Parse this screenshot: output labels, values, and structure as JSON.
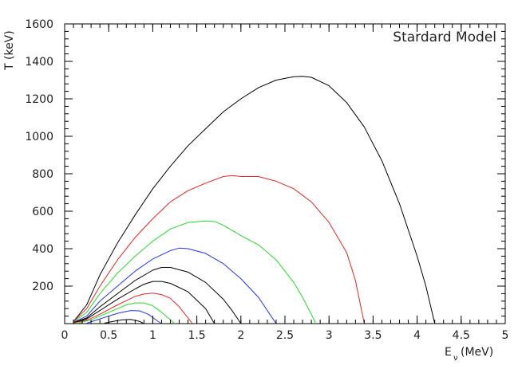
{
  "chart_data": {
    "type": "line",
    "title": "",
    "annotation": "Stardard Model",
    "xlabel": "E_ν (MeV)",
    "xlabel_main": "E",
    "xlabel_sub": "ν",
    "xlabel_unit": "(MeV)",
    "ylabel": "T (keV)",
    "xlim": [
      0,
      5
    ],
    "ylim": [
      0,
      1600
    ],
    "x_ticks": [
      "0",
      "0.5",
      "1",
      "1.5",
      "2",
      "2.5",
      "3",
      "3.5",
      "4",
      "4.5",
      "5"
    ],
    "y_ticks": [
      "200",
      "400",
      "600",
      "800",
      "1000",
      "1200",
      "1400",
      "1600"
    ],
    "grid": false,
    "series": [
      {
        "color": "#000000",
        "x": [
          0.1,
          0.25,
          0.4,
          0.6,
          0.8,
          1.0,
          1.2,
          1.4,
          1.6,
          1.8,
          2.0,
          2.2,
          2.4,
          2.6,
          2.7,
          2.8,
          3.0,
          3.2,
          3.4,
          3.6,
          3.8,
          4.0,
          4.1,
          4.2
        ],
        "y": [
          10,
          100,
          260,
          430,
          580,
          720,
          840,
          950,
          1040,
          1130,
          1200,
          1260,
          1300,
          1318,
          1320,
          1315,
          1270,
          1180,
          1050,
          870,
          640,
          360,
          200,
          0
        ]
      },
      {
        "color": "#e8251f",
        "x": [
          0.1,
          0.25,
          0.4,
          0.6,
          0.8,
          1.0,
          1.2,
          1.4,
          1.6,
          1.8,
          1.9,
          2.0,
          2.2,
          2.4,
          2.6,
          2.8,
          3.0,
          3.2,
          3.3,
          3.4
        ],
        "y": [
          10,
          80,
          200,
          340,
          460,
          560,
          650,
          710,
          750,
          785,
          790,
          785,
          785,
          760,
          720,
          650,
          540,
          380,
          230,
          0
        ]
      },
      {
        "color": "#22dd22",
        "x": [
          0.1,
          0.25,
          0.4,
          0.6,
          0.8,
          1.0,
          1.2,
          1.4,
          1.6,
          1.7,
          1.8,
          2.0,
          2.2,
          2.4,
          2.6,
          2.7,
          2.8,
          2.85
        ],
        "y": [
          8,
          60,
          160,
          270,
          360,
          440,
          505,
          540,
          548,
          545,
          525,
          470,
          420,
          340,
          220,
          140,
          50,
          0
        ]
      },
      {
        "color": "#2233ee",
        "x": [
          0.1,
          0.25,
          0.4,
          0.6,
          0.8,
          1.0,
          1.2,
          1.3,
          1.4,
          1.6,
          1.8,
          2.0,
          2.2,
          2.3,
          2.4
        ],
        "y": [
          6,
          40,
          120,
          200,
          280,
          345,
          390,
          403,
          400,
          375,
          320,
          240,
          140,
          70,
          0
        ]
      },
      {
        "color": "#000000",
        "x": [
          0.1,
          0.25,
          0.4,
          0.6,
          0.8,
          1.0,
          1.1,
          1.2,
          1.4,
          1.6,
          1.8,
          1.9,
          2.0
        ],
        "y": [
          5,
          30,
          90,
          160,
          230,
          285,
          300,
          300,
          275,
          220,
          130,
          70,
          0
        ]
      },
      {
        "color": "#000000",
        "x": [
          0.1,
          0.25,
          0.4,
          0.6,
          0.8,
          0.9,
          1.0,
          1.1,
          1.2,
          1.4,
          1.6,
          1.7
        ],
        "y": [
          4,
          25,
          70,
          130,
          185,
          210,
          225,
          225,
          215,
          170,
          80,
          0
        ]
      },
      {
        "color": "#e8251f",
        "x": [
          0.1,
          0.25,
          0.4,
          0.6,
          0.8,
          0.9,
          1.0,
          1.1,
          1.2,
          1.3,
          1.4,
          1.45
        ],
        "y": [
          3,
          18,
          50,
          100,
          145,
          158,
          163,
          155,
          135,
          90,
          30,
          0
        ]
      },
      {
        "color": "#22dd22",
        "x": [
          0.15,
          0.3,
          0.5,
          0.7,
          0.8,
          0.9,
          1.0,
          1.1,
          1.2,
          1.25
        ],
        "y": [
          2,
          20,
          60,
          100,
          110,
          110,
          95,
          60,
          20,
          0
        ]
      },
      {
        "color": "#2233ee",
        "x": [
          0.25,
          0.4,
          0.6,
          0.75,
          0.85,
          0.95,
          1.05,
          1.1
        ],
        "y": [
          2,
          25,
          55,
          70,
          68,
          50,
          15,
          0
        ]
      },
      {
        "color": "#000000",
        "x": [
          0.45,
          0.55,
          0.65,
          0.75,
          0.85,
          0.9
        ],
        "y": [
          2,
          12,
          20,
          22,
          12,
          0
        ]
      }
    ]
  }
}
